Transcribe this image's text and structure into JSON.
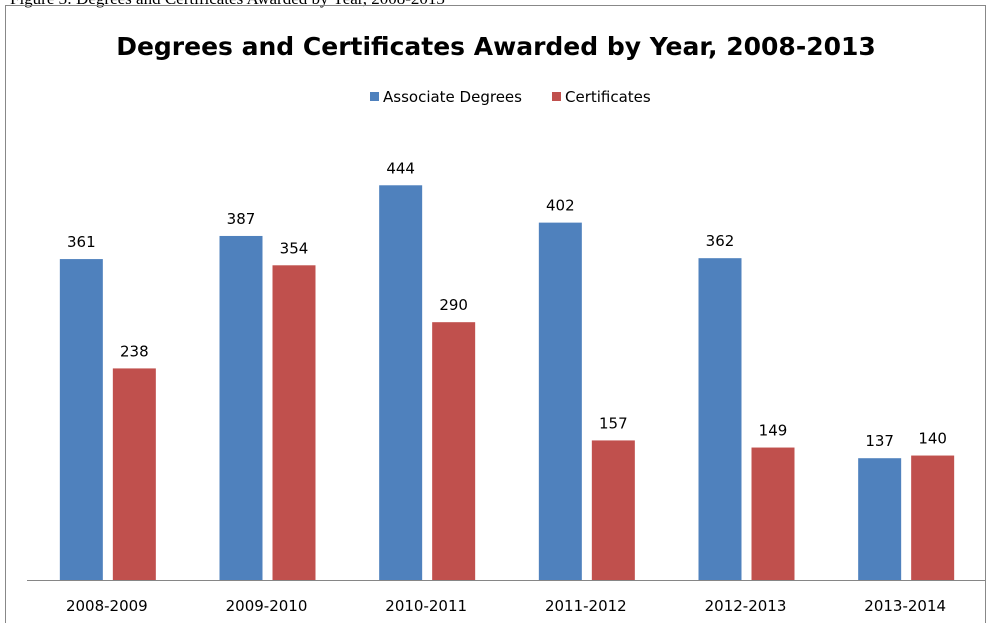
{
  "caption": "Figure 3: Degrees and Certificates Awarded by Year, 2008-2013",
  "chart_data": {
    "type": "bar",
    "title": "Degrees and Certificates Awarded by Year, 2008-2013",
    "categories": [
      "2008-2009",
      "2009-2010",
      "2010-2011",
      "2011-2012",
      "2012-2013",
      "2013-2014"
    ],
    "series": [
      {
        "name": "Associate Degrees",
        "color": "#4f81bd",
        "values": [
          361,
          387,
          444,
          402,
          362,
          137
        ]
      },
      {
        "name": "Certificates",
        "color": "#c0504d",
        "values": [
          238,
          354,
          290,
          157,
          149,
          140
        ]
      }
    ],
    "ylim": [
      0,
      500
    ],
    "legend": "top"
  }
}
